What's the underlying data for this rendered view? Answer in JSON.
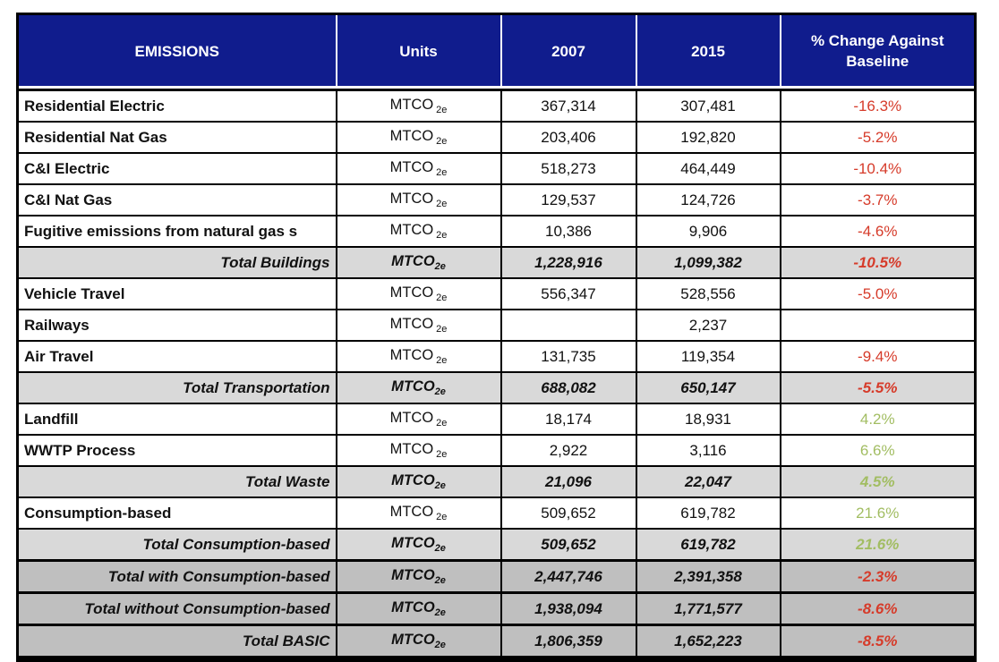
{
  "colors": {
    "header_bg": "#101c8d",
    "header_text": "#ffffff",
    "subtotal_bg": "#d9d9d9",
    "grand_total_bg": "#bfbfbf",
    "negative_change": "#d63b2a",
    "positive_change": "#a2bd62",
    "border": "#000000"
  },
  "header": {
    "columns": [
      "EMISSIONS",
      "Units",
      "2007",
      "2015",
      "% Change Against Baseline"
    ]
  },
  "units": {
    "base": "MTCO",
    "subscript": "2e"
  },
  "table": {
    "rows": [
      {
        "label": "Residential Electric",
        "row_style": "data",
        "value_2007": "367,314",
        "value_2015": "307,481",
        "pct_change": "-16.3%",
        "change_direction": "negative"
      },
      {
        "label": "Residential Nat Gas",
        "row_style": "data",
        "value_2007": "203,406",
        "value_2015": "192,820",
        "pct_change": "-5.2%",
        "change_direction": "negative"
      },
      {
        "label": "C&I Electric",
        "row_style": "data",
        "value_2007": "518,273",
        "value_2015": "464,449",
        "pct_change": "-10.4%",
        "change_direction": "negative"
      },
      {
        "label": "C&I Nat Gas",
        "row_style": "data",
        "value_2007": "129,537",
        "value_2015": "124,726",
        "pct_change": "-3.7%",
        "change_direction": "negative"
      },
      {
        "label": "Fugitive emissions from natural gas s",
        "row_style": "data",
        "value_2007": "10,386",
        "value_2015": "9,906",
        "pct_change": "-4.6%",
        "change_direction": "negative"
      },
      {
        "label": "Total Buildings",
        "row_style": "subtotal",
        "value_2007": "1,228,916",
        "value_2015": "1,099,382",
        "pct_change": "-10.5%",
        "change_direction": "negative"
      },
      {
        "label": "Vehicle Travel",
        "row_style": "data",
        "value_2007": "556,347",
        "value_2015": "528,556",
        "pct_change": "-5.0%",
        "change_direction": "negative"
      },
      {
        "label": "Railways",
        "row_style": "data",
        "value_2007": "",
        "value_2015": "2,237",
        "pct_change": "",
        "change_direction": "none"
      },
      {
        "label": "Air Travel",
        "row_style": "data",
        "value_2007": "131,735",
        "value_2015": "119,354",
        "pct_change": "-9.4%",
        "change_direction": "negative"
      },
      {
        "label": "Total Transportation",
        "row_style": "subtotal",
        "value_2007": "688,082",
        "value_2015": "650,147",
        "pct_change": "-5.5%",
        "change_direction": "negative"
      },
      {
        "label": "Landfill",
        "row_style": "data",
        "value_2007": "18,174",
        "value_2015": "18,931",
        "pct_change": "4.2%",
        "change_direction": "positive"
      },
      {
        "label": "WWTP Process",
        "row_style": "data",
        "value_2007": "2,922",
        "value_2015": "3,116",
        "pct_change": "6.6%",
        "change_direction": "positive"
      },
      {
        "label": "Total Waste",
        "row_style": "subtotal",
        "value_2007": "21,096",
        "value_2015": "22,047",
        "pct_change": "4.5%",
        "change_direction": "positive"
      },
      {
        "label": "Consumption-based",
        "row_style": "data",
        "value_2007": "509,652",
        "value_2015": "619,782",
        "pct_change": "21.6%",
        "change_direction": "positive"
      },
      {
        "label": "Total Consumption-based",
        "row_style": "subtotal",
        "value_2007": "509,652",
        "value_2015": "619,782",
        "pct_change": "21.6%",
        "change_direction": "positive"
      },
      {
        "label": "Total with Consumption-based",
        "row_style": "grand-total",
        "value_2007": "2,447,746",
        "value_2015": "2,391,358",
        "pct_change": "-2.3%",
        "change_direction": "negative"
      },
      {
        "label": "Total without Consumption-based",
        "row_style": "grand-total",
        "value_2007": "1,938,094",
        "value_2015": "1,771,577",
        "pct_change": "-8.6%",
        "change_direction": "negative"
      },
      {
        "label": "Total BASIC",
        "row_style": "grand-total",
        "value_2007": "1,806,359",
        "value_2015": "1,652,223",
        "pct_change": "-8.5%",
        "change_direction": "negative"
      }
    ]
  },
  "chart_data": {
    "type": "table",
    "title": "",
    "columns": [
      "EMISSIONS",
      "Units",
      "2007",
      "2015",
      "% Change Against Baseline"
    ],
    "units_all_rows": "MTCO2e",
    "rows": [
      {
        "category": "Residential Electric",
        "y2007": 367314,
        "y2015": 307481,
        "pct_change": -16.3
      },
      {
        "category": "Residential Nat Gas",
        "y2007": 203406,
        "y2015": 192820,
        "pct_change": -5.2
      },
      {
        "category": "C&I Electric",
        "y2007": 518273,
        "y2015": 464449,
        "pct_change": -10.4
      },
      {
        "category": "C&I Nat Gas",
        "y2007": 129537,
        "y2015": 124726,
        "pct_change": -3.7
      },
      {
        "category": "Fugitive emissions from natural gas s",
        "y2007": 10386,
        "y2015": 9906,
        "pct_change": -4.6
      },
      {
        "category": "Total Buildings",
        "y2007": 1228916,
        "y2015": 1099382,
        "pct_change": -10.5
      },
      {
        "category": "Vehicle Travel",
        "y2007": 556347,
        "y2015": 528556,
        "pct_change": -5.0
      },
      {
        "category": "Railways",
        "y2007": null,
        "y2015": 2237,
        "pct_change": null
      },
      {
        "category": "Air Travel",
        "y2007": 131735,
        "y2015": 119354,
        "pct_change": -9.4
      },
      {
        "category": "Total Transportation",
        "y2007": 688082,
        "y2015": 650147,
        "pct_change": -5.5
      },
      {
        "category": "Landfill",
        "y2007": 18174,
        "y2015": 18931,
        "pct_change": 4.2
      },
      {
        "category": "WWTP Process",
        "y2007": 2922,
        "y2015": 3116,
        "pct_change": 6.6
      },
      {
        "category": "Total Waste",
        "y2007": 21096,
        "y2015": 22047,
        "pct_change": 4.5
      },
      {
        "category": "Consumption-based",
        "y2007": 509652,
        "y2015": 619782,
        "pct_change": 21.6
      },
      {
        "category": "Total Consumption-based",
        "y2007": 509652,
        "y2015": 619782,
        "pct_change": 21.6
      },
      {
        "category": "Total with Consumption-based",
        "y2007": 2447746,
        "y2015": 2391358,
        "pct_change": -2.3
      },
      {
        "category": "Total without Consumption-based",
        "y2007": 1938094,
        "y2015": 1771577,
        "pct_change": -8.6
      },
      {
        "category": "Total BASIC",
        "y2007": 1806359,
        "y2015": 1652223,
        "pct_change": -8.5
      }
    ]
  }
}
